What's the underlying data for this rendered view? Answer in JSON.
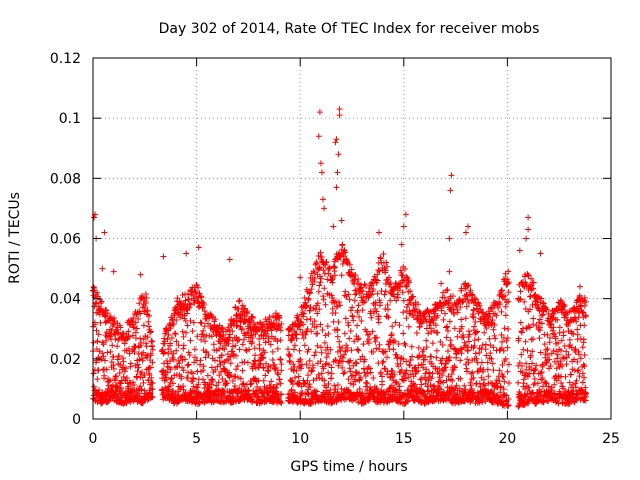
{
  "chart_data": {
    "type": "scatter",
    "title": "Day 302 of 2014, Rate Of TEC Index for receiver mobs",
    "xlabel": "GPS time / hours",
    "ylabel": "ROTI / TECUs",
    "xlim": [
      0,
      25
    ],
    "ylim": [
      0,
      0.12
    ],
    "x_ticks": [
      0,
      5,
      10,
      15,
      20,
      25
    ],
    "x_tick_labels": [
      "0",
      "5",
      "10",
      "15",
      "20",
      "25"
    ],
    "y_ticks": [
      0,
      0.02,
      0.04,
      0.06,
      0.08,
      0.1,
      0.12
    ],
    "y_tick_labels": [
      "0",
      "0.02",
      "0.04",
      "0.06",
      "0.08",
      "0.1",
      "0.12"
    ],
    "grid": true,
    "marker": "+",
    "color": "#ff0000",
    "series": [
      {
        "name": "ROTI",
        "envelope": {
          "x": [
            0.0,
            0.5,
            1.0,
            1.5,
            2.0,
            2.5,
            3.0,
            3.5,
            4.0,
            4.5,
            5.0,
            5.5,
            6.0,
            6.5,
            7.0,
            7.5,
            8.0,
            8.5,
            9.0,
            9.5,
            10.0,
            10.5,
            11.0,
            11.5,
            12.0,
            12.5,
            13.0,
            13.5,
            14.0,
            14.5,
            15.0,
            15.5,
            16.0,
            16.5,
            17.0,
            17.5,
            18.0,
            18.5,
            19.0,
            19.5,
            20.0,
            20.5,
            21.0,
            21.5,
            22.0,
            22.5,
            23.0,
            23.5,
            23.8
          ],
          "y_max": [
            0.045,
            0.038,
            0.034,
            0.03,
            0.036,
            0.044,
            0.022,
            0.03,
            0.04,
            0.042,
            0.045,
            0.036,
            0.034,
            0.03,
            0.04,
            0.036,
            0.032,
            0.034,
            0.036,
            0.03,
            0.036,
            0.048,
            0.056,
            0.05,
            0.06,
            0.05,
            0.044,
            0.048,
            0.056,
            0.044,
            0.052,
            0.04,
            0.036,
            0.038,
            0.044,
            0.04,
            0.046,
            0.04,
            0.036,
            0.04,
            0.05,
            0.044,
            0.05,
            0.042,
            0.036,
            0.04,
            0.036,
            0.042,
            0.04
          ],
          "y_min": [
            0.006,
            0.005,
            0.006,
            0.005,
            0.006,
            0.005,
            0.008,
            0.006,
            0.005,
            0.006,
            0.005,
            0.005,
            0.006,
            0.005,
            0.006,
            0.006,
            0.005,
            0.006,
            0.005,
            0.006,
            0.005,
            0.005,
            0.006,
            0.005,
            0.006,
            0.006,
            0.005,
            0.006,
            0.005,
            0.006,
            0.005,
            0.006,
            0.005,
            0.006,
            0.006,
            0.005,
            0.006,
            0.005,
            0.006,
            0.005,
            0.004,
            0.004,
            0.005,
            0.005,
            0.006,
            0.005,
            0.005,
            0.006,
            0.006
          ]
        },
        "gaps": [
          [
            2.9,
            3.3
          ],
          [
            9.1,
            9.4
          ],
          [
            20.1,
            20.5
          ]
        ],
        "highlights": [
          {
            "x": 0.1,
            "y": 0.068
          },
          {
            "x": 0.05,
            "y": 0.067
          },
          {
            "x": 0.15,
            "y": 0.06
          },
          {
            "x": 0.55,
            "y": 0.062
          },
          {
            "x": 0.45,
            "y": 0.05
          },
          {
            "x": 1.0,
            "y": 0.049
          },
          {
            "x": 2.3,
            "y": 0.048
          },
          {
            "x": 3.4,
            "y": 0.054
          },
          {
            "x": 4.5,
            "y": 0.055
          },
          {
            "x": 5.1,
            "y": 0.057
          },
          {
            "x": 6.6,
            "y": 0.053
          },
          {
            "x": 10.95,
            "y": 0.102
          },
          {
            "x": 10.9,
            "y": 0.094
          },
          {
            "x": 11.0,
            "y": 0.085
          },
          {
            "x": 11.05,
            "y": 0.082
          },
          {
            "x": 11.1,
            "y": 0.073
          },
          {
            "x": 11.15,
            "y": 0.07
          },
          {
            "x": 11.9,
            "y": 0.103
          },
          {
            "x": 11.9,
            "y": 0.101
          },
          {
            "x": 11.75,
            "y": 0.093
          },
          {
            "x": 11.7,
            "y": 0.092
          },
          {
            "x": 11.85,
            "y": 0.088
          },
          {
            "x": 11.8,
            "y": 0.082
          },
          {
            "x": 11.75,
            "y": 0.077
          },
          {
            "x": 12.0,
            "y": 0.066
          },
          {
            "x": 11.6,
            "y": 0.064
          },
          {
            "x": 15.1,
            "y": 0.068
          },
          {
            "x": 15.0,
            "y": 0.064
          },
          {
            "x": 14.9,
            "y": 0.058
          },
          {
            "x": 17.3,
            "y": 0.081
          },
          {
            "x": 17.25,
            "y": 0.076
          },
          {
            "x": 17.2,
            "y": 0.06
          },
          {
            "x": 17.2,
            "y": 0.049
          },
          {
            "x": 18.1,
            "y": 0.064
          },
          {
            "x": 18.0,
            "y": 0.062
          },
          {
            "x": 21.0,
            "y": 0.067
          },
          {
            "x": 21.0,
            "y": 0.063
          },
          {
            "x": 20.9,
            "y": 0.06
          },
          {
            "x": 20.6,
            "y": 0.056
          },
          {
            "x": 21.6,
            "y": 0.055
          },
          {
            "x": 16.8,
            "y": 0.045
          },
          {
            "x": 13.8,
            "y": 0.062
          },
          {
            "x": 10.0,
            "y": 0.047
          },
          {
            "x": 23.5,
            "y": 0.044
          }
        ]
      }
    ]
  }
}
